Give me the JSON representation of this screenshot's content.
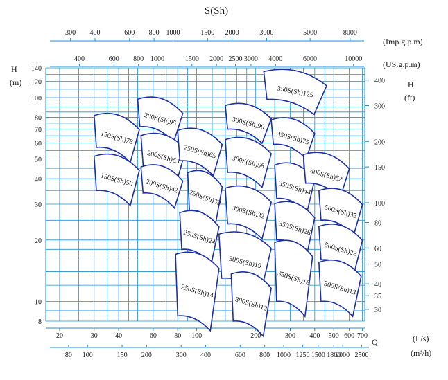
{
  "chart_data": {
    "type": "pump-performance-coverage",
    "title": "S(Sh)",
    "unit_labels": {
      "imp_gpm": "(Imp.g.p.m)",
      "us_gpm": "(US.g.p.m)",
      "h_left": "H",
      "h_left_unit": "(m)",
      "h_right": "H",
      "h_right_unit": "(ft)",
      "q": "Q",
      "q_ls": "(L/s)",
      "q_m3h": "(m³/h)"
    },
    "colors": {
      "grid": "#1e8fd6",
      "region": "#1b2fa6"
    },
    "x_range_ls": [
      17,
      720
    ],
    "y_range_m": [
      8,
      140
    ],
    "h_m_ticks": [
      8,
      10,
      20,
      30,
      40,
      50,
      60,
      70,
      80,
      100,
      120,
      140
    ],
    "h_ft_ticks": [
      30,
      35,
      40,
      50,
      60,
      80,
      100,
      150,
      200,
      300,
      400
    ],
    "q_ls_ticks": [
      "20",
      "30",
      "40",
      "60",
      "80",
      "100",
      "200",
      "300",
      "400",
      "500",
      "600",
      "700"
    ],
    "q_m3h_ticks": [
      "80",
      "100",
      "150",
      "200",
      "300",
      "400",
      "600",
      "800",
      "1000",
      "1250",
      "1500",
      "1800",
      "2000",
      "2500"
    ],
    "imp_gpm_ticks": [
      "300",
      "400",
      "600",
      "800",
      "1000",
      "1500",
      "2000",
      "3000",
      "5000",
      "8000"
    ],
    "us_gpm_ticks": [
      "400",
      "600",
      "800",
      "1000",
      "1500",
      "2000",
      "2500",
      "3000",
      "4000",
      "6000",
      "10000"
    ],
    "pumps": [
      {
        "model": "150S(Sh)78",
        "q_range_ls": [
          30,
          51
        ],
        "h_range_m": [
          57,
          84
        ]
      },
      {
        "model": "150S(Sh)50",
        "q_range_ls": [
          30,
          51
        ],
        "h_range_m": [
          35,
          53
        ]
      },
      {
        "model": "200S(Sh)95",
        "q_range_ls": [
          50,
          85
        ],
        "h_range_m": [
          72,
          101
        ]
      },
      {
        "model": "200S(Sh)63",
        "q_range_ls": [
          52,
          88
        ],
        "h_range_m": [
          46,
          67
        ]
      },
      {
        "model": "200S(Sh)42",
        "q_range_ls": [
          52,
          85
        ],
        "h_range_m": [
          34,
          47
        ]
      },
      {
        "model": "250S(Sh)65",
        "q_range_ls": [
          80,
          135
        ],
        "h_range_m": [
          49,
          71
        ]
      },
      {
        "model": "250S(Sh)39",
        "q_range_ls": [
          90,
          135
        ],
        "h_range_m": [
          28,
          44
        ]
      },
      {
        "model": "250S(Sh)24",
        "q_range_ls": [
          82,
          130
        ],
        "h_range_m": [
          18,
          28
        ]
      },
      {
        "model": "250S(Sh)14",
        "q_range_ls": [
          78,
          130
        ],
        "h_range_m": [
          8.5,
          17.5
        ]
      },
      {
        "model": "300S(Sh)90",
        "q_range_ls": [
          140,
          240
        ],
        "h_range_m": [
          70,
          94
        ]
      },
      {
        "model": "300S(Sh)58",
        "q_range_ls": [
          140,
          240
        ],
        "h_range_m": [
          43,
          64
        ]
      },
      {
        "model": "300S(Sh)32",
        "q_range_ls": [
          140,
          240
        ],
        "h_range_m": [
          24,
          37
        ]
      },
      {
        "model": "300S(Sh)19",
        "q_range_ls": [
          130,
          240
        ],
        "h_range_m": [
          13,
          22
        ]
      },
      {
        "model": "300S(Sh)12",
        "q_range_ls": [
          150,
          240
        ],
        "h_range_m": [
          8,
          14
        ]
      },
      {
        "model": "350S(Sh)125",
        "q_range_ls": [
          220,
          460
        ],
        "h_range_m": [
          98,
          138
        ]
      },
      {
        "model": "350S(Sh)75",
        "q_range_ls": [
          240,
          400
        ],
        "h_range_m": [
          59,
          80
        ]
      },
      {
        "model": "350S(Sh)44",
        "q_range_ls": [
          250,
          400
        ],
        "h_range_m": [
          32,
          48
        ]
      },
      {
        "model": "350S(Sh)26",
        "q_range_ls": [
          250,
          400
        ],
        "h_range_m": [
          20,
          31
        ]
      },
      {
        "model": "350S(Sh)16",
        "q_range_ls": [
          250,
          390
        ],
        "h_range_m": [
          10,
          20
        ]
      },
      {
        "model": "400S(Sh)52",
        "q_range_ls": [
          350,
          600
        ],
        "h_range_m": [
          38,
          54
        ]
      },
      {
        "model": "500S(Sh)35",
        "q_range_ls": [
          420,
          700
        ],
        "h_range_m": [
          25,
          36
        ]
      },
      {
        "model": "500S(Sh)22",
        "q_range_ls": [
          420,
          700
        ],
        "h_range_m": [
          16,
          24
        ]
      },
      {
        "model": "500S(Sh)13",
        "q_range_ls": [
          420,
          690
        ],
        "h_range_m": [
          10,
          16
        ]
      }
    ]
  }
}
